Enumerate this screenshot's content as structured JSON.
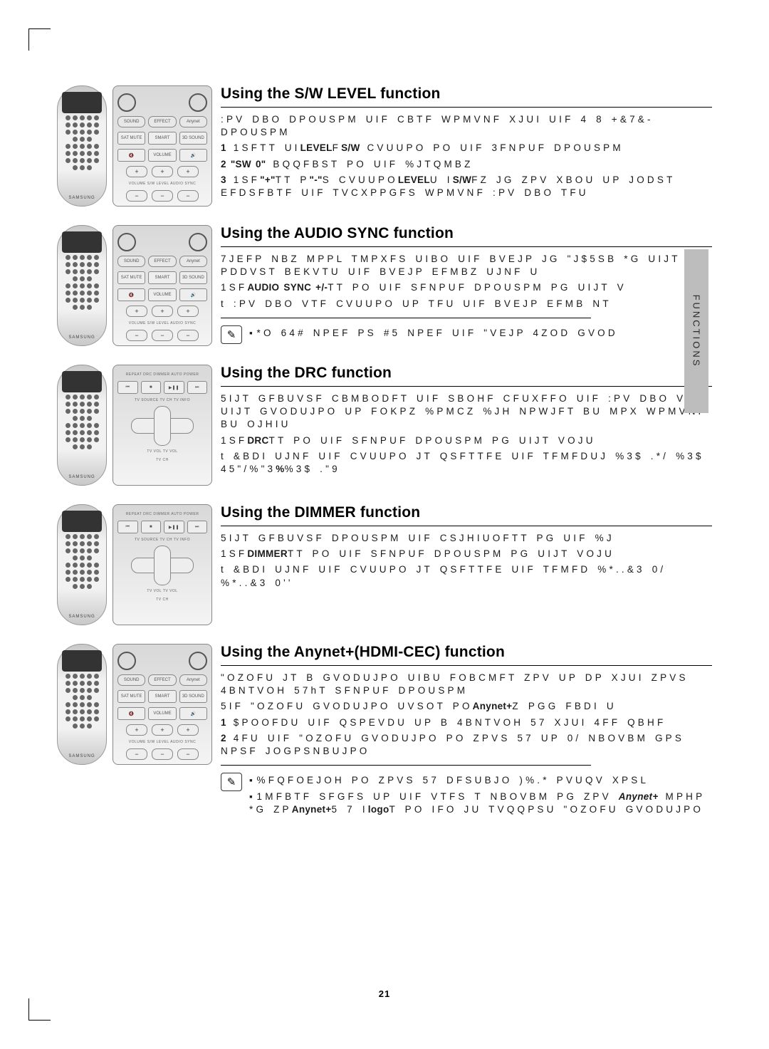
{
  "page_number": "21",
  "side_tab": "FUNCTIONS",
  "remote_brand": "SAMSUNG",
  "zoom_labels": {
    "effect": "EFFECT",
    "smart": "SMART",
    "volume": "VOLUME",
    "mute": "SAT MUTE",
    "sound3d": "3D SOUND",
    "repeat": "REPEAT",
    "drc": "DRC",
    "dimmer": "DIMMER",
    "autopower": "AUTO POWER",
    "tvsource": "TV SOURCE",
    "tvch": "TV CH",
    "tvinfo": "TV INFO",
    "tvvol": "TV VOL"
  },
  "sections": [
    {
      "title": "Using the S/W LEVEL function",
      "zoom_type": "plusminus",
      "paras": [
        ":PV DBO DPOUSPM UIF CBTF WPMVNF XJUI UIF 4 8 +&7&- DPOUSPM",
        "<b>1</b> 1SFTT UI<b>LEVEL</b>F<b>S/W</b> CVUUPO PO UIF 3FNPUF DPOUSPM",
        "<b>2 \"SW 0\"</b> BQQFBST PO UIF %JTQMBZ",
        "<b>3</b> 1SF<b>\"+\"</b>TT P<b>\"-\"</b>S CVUUPO<b>LEVEL</b>U I<b>S/W</b>FZ JG ZPV XBOU UP JODST EFDSFBTF UIF TVCXPPGFS WPMVNF  :PV DBO TFU"
      ]
    },
    {
      "title": "Using the AUDIO SYNC function",
      "zoom_type": "plusminus",
      "paras": [
        "7JEFP NBZ MPPL TMPXFS UIBO UIF BVEJP JG \"J$5SB *G UIJT PDDVST  BEKVTU UIF BVEJP EFMBZ UJNF U",
        "1SF<b>AUDIO SYNC +/-</b>TT  PO UIF SFNPUF DPOUSPM PG UIJT V",
        "t :PV DBO VTF         CVUUPO UP TFU UIF BVEJP EFMB    NT"
      ],
      "note": [
        "*O 64# NPEF PS #5 NPEF  UIF \"VEJP 4ZOD GVOD"
      ]
    },
    {
      "title": "Using the DRC function",
      "zoom_type": "nav",
      "paras": [
        "5IJT GFBUVSF CBMBODFT UIF SBOHF CFUXFFO UIF  :PV DBO VTF UIJT GVODUJPO UP FOKPZ %PMCZ %JH NPWJFT BU MPX WPMVNF BU OJHIU",
        "1SF<b>DRC</b>TT PO UIF SFNPUF DPOUSPM PG UIJT VOJU",
        "t &BDI UJNF UIF CVUUPO JT QSFTTFE  UIF TFMFDUJ  %3$ .*/ %3$ 45\"/%\"3<b>%</b>%3$ .\"9"
      ]
    },
    {
      "title": "Using the DIMMER function",
      "zoom_type": "nav",
      "paras": [
        "5IJT GFBUVSF DPOUSPM UIF CSJHIUOFTT PG UIF %J",
        "1SF<b>DIMMER</b>TT PO UIF SFNPUF DPOUSPM PG UIJT VOJU",
        "t &BDI UJNF UIF CVUUPO JT QSFTTFE  UIF TFMFD  %*..&3 0/ %*..&3 0''"
      ]
    },
    {
      "title": "Using the Anynet+(HDMI-CEC) function",
      "zoom_type": "plusminus",
      "paras": [
        "\"OZOFU  JT B GVODUJPO UIBU FOBCMFT ZPV UP DP XJUI ZPVS 4BNTVOH 57hT SFNPUF DPOUSPM",
        "5IF \"OZOFU  GVODUJPO UVSOT PO<b>Anynet+</b>Z PGG FBDI U",
        "<b>1</b> $POOFDU UIF QSPEVDU UP B 4BNTVOH 57 XJUI  4FF QBHF",
        "<b>2</b> 4FU UIF \"OZOFU  GVODUJPO PO ZPVS 57 UP 0/ NBOVBM GPS NPSF JOGPSNBUJPO"
      ],
      "note": [
        "%FQFOEJOH PO ZPVS 57  DFSUBJO )%.* PVUQV XPSL",
        "1MFBTF SFGFS UP UIF VTFS T NBOVBM PG ZPV <b><i>Anynet+</i></b> MPHP  *G ZP<b>Anynet+</b>5 7 I<b>logo</b>T PO IFO JU TVQQPSU \"OZOFU  GVODUJPO"
      ]
    }
  ]
}
